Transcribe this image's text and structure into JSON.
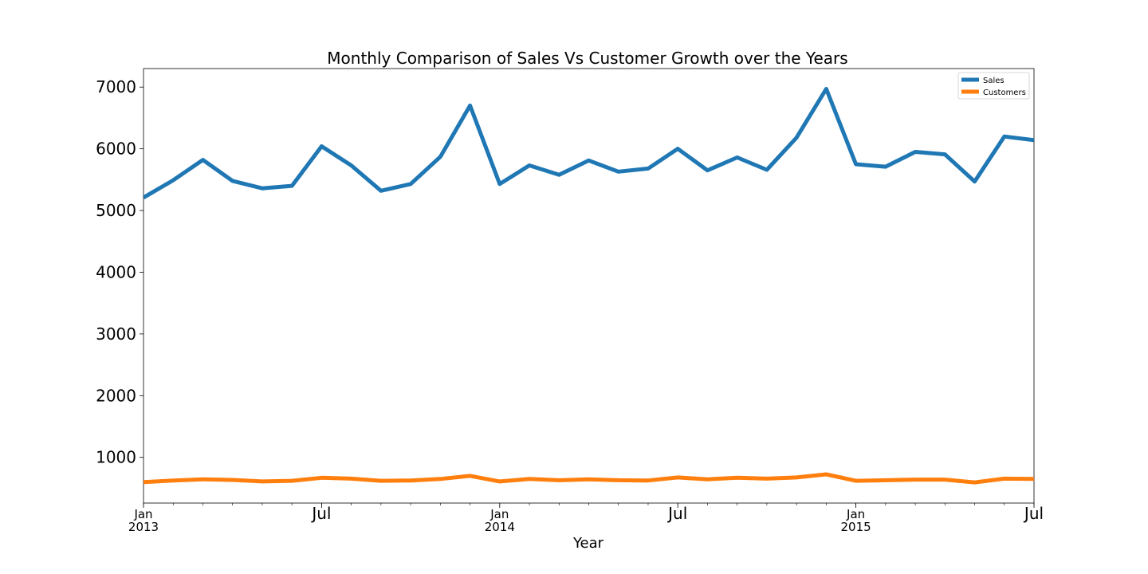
{
  "chart_data": {
    "type": "line",
    "title": "Monthly Comparison of Sales Vs Customer Growth over the Years",
    "xlabel": "Year",
    "ylabel": "",
    "x": [
      "2013-01",
      "2013-02",
      "2013-03",
      "2013-04",
      "2013-05",
      "2013-06",
      "2013-07",
      "2013-08",
      "2013-09",
      "2013-10",
      "2013-11",
      "2013-12",
      "2014-01",
      "2014-02",
      "2014-03",
      "2014-04",
      "2014-05",
      "2014-06",
      "2014-07",
      "2014-08",
      "2014-09",
      "2014-10",
      "2014-11",
      "2014-12",
      "2015-01",
      "2015-02",
      "2015-03",
      "2015-04",
      "2015-05",
      "2015-06",
      "2015-07"
    ],
    "xlim": [
      "2013-01",
      "2015-07"
    ],
    "ylim": [
      260,
      7300
    ],
    "yticks": [
      1000,
      2000,
      3000,
      4000,
      5000,
      6000,
      7000
    ],
    "xticks_major": [
      {
        "x": "2013-01",
        "label": "Jan",
        "year": "2013"
      },
      {
        "x": "2013-07",
        "label": "Jul",
        "year": ""
      },
      {
        "x": "2014-01",
        "label": "Jan",
        "year": "2014"
      },
      {
        "x": "2014-07",
        "label": "Jul",
        "year": ""
      },
      {
        "x": "2015-01",
        "label": "Jan",
        "year": "2015"
      },
      {
        "x": "2015-07",
        "label": "Jul",
        "year": ""
      }
    ],
    "grid": false,
    "legend_position": "top-right",
    "series": [
      {
        "name": "Sales",
        "color": "#1f77b4",
        "values": [
          5210,
          5490,
          5820,
          5480,
          5360,
          5400,
          6040,
          5730,
          5320,
          5430,
          5870,
          6700,
          5430,
          5730,
          5580,
          5810,
          5630,
          5680,
          6000,
          5650,
          5860,
          5660,
          6180,
          6970,
          5750,
          5710,
          5950,
          5910,
          5470,
          6200,
          6140
        ]
      },
      {
        "name": "Customers",
        "color": "#ff7f0e",
        "values": [
          600,
          625,
          645,
          635,
          610,
          620,
          670,
          655,
          620,
          625,
          650,
          700,
          610,
          650,
          630,
          645,
          630,
          625,
          675,
          645,
          670,
          655,
          675,
          725,
          620,
          630,
          640,
          640,
          595,
          655,
          650
        ]
      }
    ]
  }
}
